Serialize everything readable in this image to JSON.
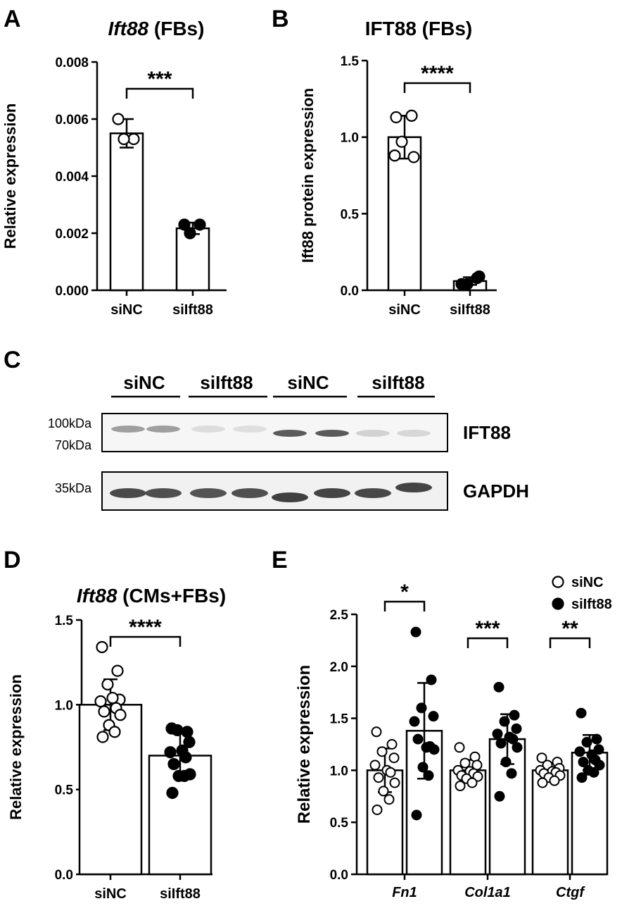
{
  "panel_labels": [
    "A",
    "B",
    "C",
    "D",
    "E"
  ],
  "chart_data": [
    {
      "id": "A",
      "type": "bar",
      "title_italic": "Ift88",
      "title_rest": " (FBs)",
      "xlabel": "",
      "ylabel": "Relative expression",
      "ylim": [
        0,
        0.008
      ],
      "yticks": [
        "0.000",
        "0.002",
        "0.004",
        "0.006",
        "0.008"
      ],
      "categories": [
        "siNC",
        "siIft88"
      ],
      "values": [
        0.0055,
        0.00217
      ],
      "sd": [
        0.0005,
        0.0002
      ],
      "points": [
        [
          0.006,
          0.0053,
          0.0053
        ],
        [
          0.0023,
          0.0023,
          0.002
        ]
      ],
      "fill": [
        "open",
        "filled"
      ],
      "significance": "***"
    },
    {
      "id": "B",
      "type": "bar",
      "title_italic": "",
      "title_rest": "IFT88 (FBs)",
      "xlabel": "",
      "ylabel": "Ift88 protein expression",
      "ylim": [
        0,
        1.5
      ],
      "yticks": [
        "0.0",
        "0.5",
        "1.0",
        "1.5"
      ],
      "categories": [
        "siNC",
        "siIft88"
      ],
      "values": [
        1.0,
        0.06
      ],
      "sd": [
        0.14,
        0.025
      ],
      "points": [
        [
          1.13,
          1.14,
          0.97,
          0.87,
          0.88
        ],
        [
          0.04,
          0.08,
          0.04,
          0.09
        ]
      ],
      "fill": [
        "open",
        "filled"
      ],
      "significance": "****"
    },
    {
      "id": "D",
      "type": "bar",
      "title_italic": "Ift88",
      "title_rest": " (CMs+FBs)",
      "xlabel": "",
      "ylabel": "Relative expression",
      "ylim": [
        0,
        1.5
      ],
      "yticks": [
        "0.0",
        "0.5",
        "1.0",
        "1.5"
      ],
      "categories": [
        "siNC",
        "siIft88"
      ],
      "values": [
        1.0,
        0.7
      ],
      "sd": [
        0.15,
        0.13
      ],
      "points": [
        [
          1.34,
          1.2,
          1.12,
          1.03,
          1.02,
          1.04,
          0.98,
          0.96,
          0.94,
          0.88,
          0.84,
          0.81
        ],
        [
          0.86,
          0.84,
          0.85,
          0.78,
          0.72,
          0.73,
          0.69,
          0.65,
          0.59,
          0.58,
          0.58,
          0.48
        ]
      ],
      "fill": [
        "open",
        "filled"
      ],
      "significance": "****"
    },
    {
      "id": "E",
      "type": "bar",
      "title_italic": "",
      "title_rest": "",
      "xlabel": "",
      "ylabel": "Relative expression",
      "ylim": [
        0,
        2.5
      ],
      "yticks": [
        "0.0",
        "0.5",
        "1.0",
        "1.5",
        "2.0",
        "2.5"
      ],
      "categories": [
        "Fn1",
        "Col1a1",
        "Ctgf"
      ],
      "series": [
        {
          "name": "siNC",
          "values": [
            1.0,
            1.0,
            1.0
          ],
          "sd": [
            0.21,
            0.1,
            0.07
          ],
          "points": [
            [
              1.37,
              1.25,
              1.18,
              1.12,
              1.05,
              1.0,
              0.98,
              0.93,
              0.88,
              0.8,
              0.72,
              0.62
            ],
            [
              1.22,
              1.13,
              1.07,
              1.05,
              1.0,
              0.99,
              0.97,
              0.95,
              0.94,
              0.92,
              0.88,
              0.85
            ],
            [
              1.12,
              1.08,
              1.05,
              1.02,
              1.0,
              0.99,
              0.98,
              0.97,
              0.95,
              0.93,
              0.9,
              0.88
            ]
          ]
        },
        {
          "name": "siIft88",
          "values": [
            1.38,
            1.3,
            1.17
          ],
          "sd": [
            0.46,
            0.24,
            0.17
          ],
          "points": [
            [
              2.33,
              1.87,
              1.6,
              1.52,
              1.47,
              1.22,
              1.23,
              1.3,
              1.2,
              1.03,
              0.95,
              0.57
            ],
            [
              1.8,
              1.53,
              1.47,
              1.4,
              1.35,
              1.32,
              1.3,
              1.26,
              1.22,
              1.08,
              0.97,
              0.75
            ],
            [
              1.55,
              1.3,
              1.27,
              1.2,
              1.18,
              1.15,
              1.1,
              1.08,
              1.05,
              1.0,
              0.98,
              0.93
            ]
          ]
        }
      ],
      "significance": [
        "*",
        "***",
        "**"
      ],
      "legend_placement": "top-right"
    }
  ],
  "blot": {
    "lane_labels": [
      "siNC",
      "siIft88",
      "siNC",
      "siIft88"
    ],
    "markers_top": [
      "100kDa",
      "70kDa"
    ],
    "markers_bottom": [
      "35kDa"
    ],
    "protein_labels": [
      "IFT88",
      "GAPDH"
    ],
    "ift88_band_intensity": [
      0.45,
      0.45,
      0.08,
      0.07,
      0.85,
      0.85,
      0.15,
      0.12
    ],
    "gapdh_band_intensity": [
      0.85,
      0.82,
      0.8,
      0.82,
      0.9,
      0.88,
      0.86,
      0.88
    ]
  }
}
